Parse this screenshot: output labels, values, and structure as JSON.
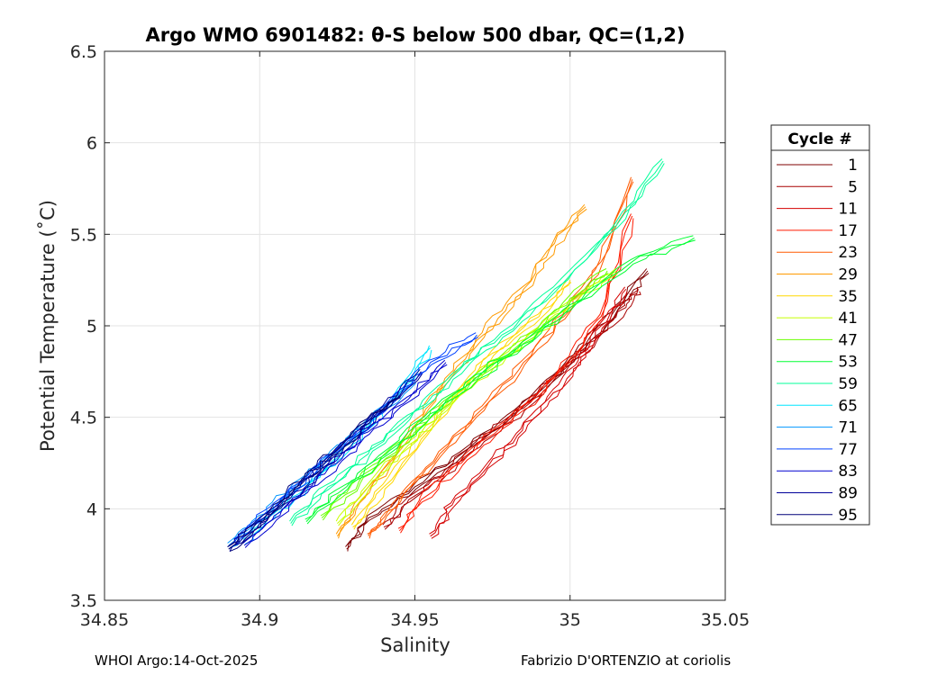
{
  "chart_data": {
    "type": "line",
    "title": "Argo WMO 6901482: θ-S below 500 dbar,  QC=(1,2)",
    "xlabel": "Salinity",
    "ylabel": "Potential Temperature (˚C)",
    "xlim": [
      34.85,
      35.05
    ],
    "ylim": [
      3.5,
      6.5
    ],
    "xticks": [
      "34.85",
      "34.9",
      "34.95",
      "35",
      "35.05"
    ],
    "yticks": [
      "3.5",
      "4",
      "4.5",
      "5",
      "5.5",
      "6",
      "6.5"
    ],
    "grid": true,
    "legend": {
      "title": "Cycle #",
      "placement": "outside-right",
      "entries": [
        "1",
        "5",
        "11",
        "17",
        "23",
        "29",
        "35",
        "41",
        "47",
        "53",
        "59",
        "65",
        "71",
        "77",
        "83",
        "89",
        "95"
      ]
    },
    "series": [
      {
        "name": "1",
        "color": "#7f0000",
        "x": [
          34.928,
          34.935,
          34.95,
          34.965,
          34.98,
          34.995,
          35.005,
          35.015,
          35.025
        ],
        "y": [
          3.78,
          3.95,
          4.12,
          4.3,
          4.5,
          4.72,
          4.9,
          5.1,
          5.3
        ]
      },
      {
        "name": "5",
        "color": "#a80000",
        "x": [
          34.94,
          34.948,
          34.96,
          34.972,
          34.985,
          34.998,
          35.008,
          35.018,
          35.022
        ],
        "y": [
          3.9,
          4.05,
          4.2,
          4.38,
          4.55,
          4.76,
          4.92,
          5.1,
          5.2
        ]
      },
      {
        "name": "11",
        "color": "#d40000",
        "x": [
          34.955,
          34.962,
          34.972,
          34.983,
          34.993,
          35.003,
          35.01,
          35.018
        ],
        "y": [
          3.85,
          4.02,
          4.2,
          4.4,
          4.6,
          4.8,
          5.0,
          5.2
        ]
      },
      {
        "name": "17",
        "color": "#ff1a00",
        "x": [
          34.945,
          34.952,
          34.965,
          34.978,
          34.99,
          35.0,
          35.01,
          35.02
        ],
        "y": [
          3.88,
          4.05,
          4.25,
          4.45,
          4.62,
          4.82,
          5.05,
          5.6
        ]
      },
      {
        "name": "23",
        "color": "#ff5a00",
        "x": [
          34.935,
          34.945,
          34.958,
          34.972,
          34.985,
          34.998,
          35.01,
          35.02
        ],
        "y": [
          3.85,
          4.05,
          4.3,
          4.55,
          4.8,
          5.05,
          5.35,
          5.8
        ]
      },
      {
        "name": "29",
        "color": "#ff9a00",
        "x": [
          34.925,
          34.935,
          34.948,
          34.96,
          34.972,
          34.985,
          34.995,
          35.005
        ],
        "y": [
          3.85,
          4.1,
          4.4,
          4.7,
          4.95,
          5.2,
          5.45,
          5.65
        ]
      },
      {
        "name": "35",
        "color": "#ffd800",
        "x": [
          34.93,
          34.94,
          34.952,
          34.963,
          34.975,
          34.99,
          35.0
        ],
        "y": [
          3.9,
          4.12,
          4.38,
          4.62,
          4.85,
          5.05,
          5.25
        ]
      },
      {
        "name": "41",
        "color": "#c8ff00",
        "x": [
          34.925,
          34.935,
          34.948,
          34.96,
          34.975,
          34.99,
          35.002,
          35.015
        ],
        "y": [
          3.92,
          4.12,
          4.35,
          4.55,
          4.78,
          4.98,
          5.15,
          5.3
        ]
      },
      {
        "name": "47",
        "color": "#6aff00",
        "x": [
          34.92,
          34.932,
          34.945,
          34.958,
          34.972,
          34.988,
          35.0,
          35.012
        ],
        "y": [
          3.95,
          4.15,
          4.35,
          4.55,
          4.75,
          4.95,
          5.15,
          5.3
        ]
      },
      {
        "name": "53",
        "color": "#00ff32",
        "x": [
          34.915,
          34.928,
          34.942,
          34.955,
          34.97,
          34.985,
          35.0,
          35.02,
          35.04
        ],
        "y": [
          3.93,
          4.12,
          4.32,
          4.52,
          4.72,
          4.9,
          5.1,
          5.35,
          5.48
        ]
      },
      {
        "name": "59",
        "color": "#00ff9a",
        "x": [
          34.91,
          34.922,
          34.935,
          34.948,
          34.962,
          34.978,
          34.995,
          35.015,
          35.03
        ],
        "y": [
          3.92,
          4.12,
          4.3,
          4.5,
          4.72,
          4.95,
          5.2,
          5.55,
          5.9
        ]
      },
      {
        "name": "65",
        "color": "#00e6ff",
        "x": [
          34.895,
          34.905,
          34.915,
          34.925,
          34.935,
          34.945,
          34.955
        ],
        "y": [
          3.82,
          3.98,
          4.12,
          4.28,
          4.45,
          4.65,
          4.88
        ]
      },
      {
        "name": "71",
        "color": "#0096ff",
        "x": [
          34.89,
          34.9,
          34.91,
          34.92,
          34.93,
          34.94,
          34.95
        ],
        "y": [
          3.8,
          3.95,
          4.1,
          4.25,
          4.4,
          4.55,
          4.7
        ]
      },
      {
        "name": "77",
        "color": "#0040ff",
        "x": [
          34.892,
          34.902,
          34.912,
          34.922,
          34.932,
          34.942,
          34.955,
          34.97
        ],
        "y": [
          3.82,
          3.98,
          4.12,
          4.28,
          4.42,
          4.58,
          4.8,
          4.95
        ]
      },
      {
        "name": "83",
        "color": "#0000d0",
        "x": [
          34.895,
          34.905,
          34.915,
          34.925,
          34.935,
          34.948,
          34.96
        ],
        "y": [
          3.8,
          3.95,
          4.1,
          4.25,
          4.42,
          4.6,
          4.8
        ]
      },
      {
        "name": "89",
        "color": "#00009a",
        "x": [
          34.89,
          34.9,
          34.91,
          34.92,
          34.93,
          34.94,
          34.952
        ],
        "y": [
          3.78,
          3.92,
          4.06,
          4.22,
          4.38,
          4.55,
          4.75
        ]
      },
      {
        "name": "95",
        "color": "#000078",
        "x": [
          34.89,
          34.898,
          34.906,
          34.915,
          34.925,
          34.935,
          34.945
        ],
        "y": [
          3.78,
          3.9,
          4.02,
          4.18,
          4.32,
          4.48,
          4.62
        ]
      }
    ]
  },
  "footer": {
    "left": "WHOI Argo:14-Oct-2025",
    "right": "Fabrizio D'ORTENZIO at coriolis"
  }
}
